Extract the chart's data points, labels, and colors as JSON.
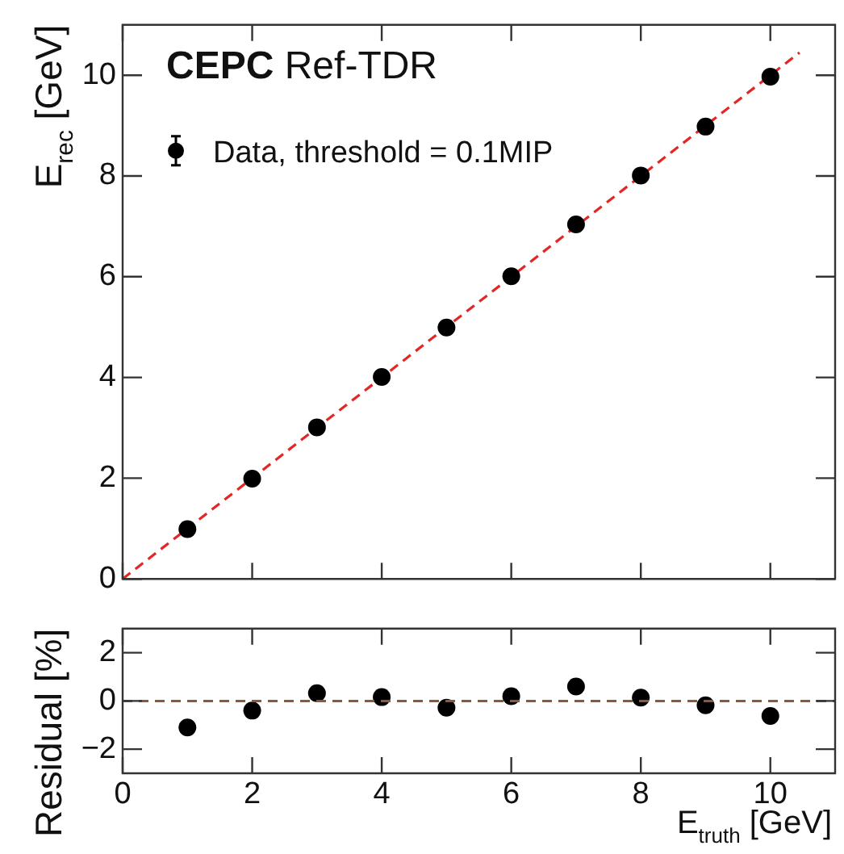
{
  "chart_data": [
    {
      "type": "scatter",
      "title": "CEPC Ref-TDR",
      "ylabel": "E$_{rec}$ [GeV]",
      "legend": "top left",
      "marker": "circle",
      "tick_labels": "y",
      "xlim": [
        0,
        11
      ],
      "xticks": [
        0,
        2,
        4,
        6,
        8,
        10
      ],
      "ylim": [
        0,
        11
      ],
      "yticks": [
        0,
        2,
        4,
        6,
        8,
        10
      ],
      "series": [
        {
          "name": "Data, threshold = 0.1MIP",
          "color": "#000000",
          "x": [
            1,
            2,
            3,
            4,
            5,
            6,
            7,
            8,
            9,
            10
          ],
          "values": [
            0.99,
            1.99,
            3.01,
            4.01,
            4.99,
            6.01,
            7.04,
            8.01,
            8.98,
            9.97
          ]
        },
        {
          "type": "line",
          "color": "#e32626",
          "line_style": "dashed",
          "marker": "none",
          "x": [
            0,
            10.45
          ],
          "values": [
            0,
            10.45
          ]
        }
      ]
    },
    {
      "type": "scatter",
      "xlabel": "E$_{truth}$ [GeV]",
      "ylabel": "Residual [%]",
      "marker": "circle",
      "xlim": [
        0,
        11
      ],
      "xticks": [
        0,
        2,
        4,
        6,
        8,
        10
      ],
      "ylim": [
        -3,
        3
      ],
      "yticks": [
        {
          "value": -2,
          "label": "−2"
        },
        0,
        2
      ],
      "x": [
        1,
        2,
        3,
        4,
        5,
        6,
        7,
        8,
        9,
        10
      ],
      "values": [
        -1.1,
        -0.4,
        0.32,
        0.16,
        -0.28,
        0.2,
        0.6,
        0.14,
        -0.18,
        -0.62
      ],
      "color": "#000000",
      "ref_lines": [
        {
          "axis": "y",
          "value": 0,
          "color": "#8b5a3c",
          "line_style": "dashed"
        }
      ]
    }
  ]
}
